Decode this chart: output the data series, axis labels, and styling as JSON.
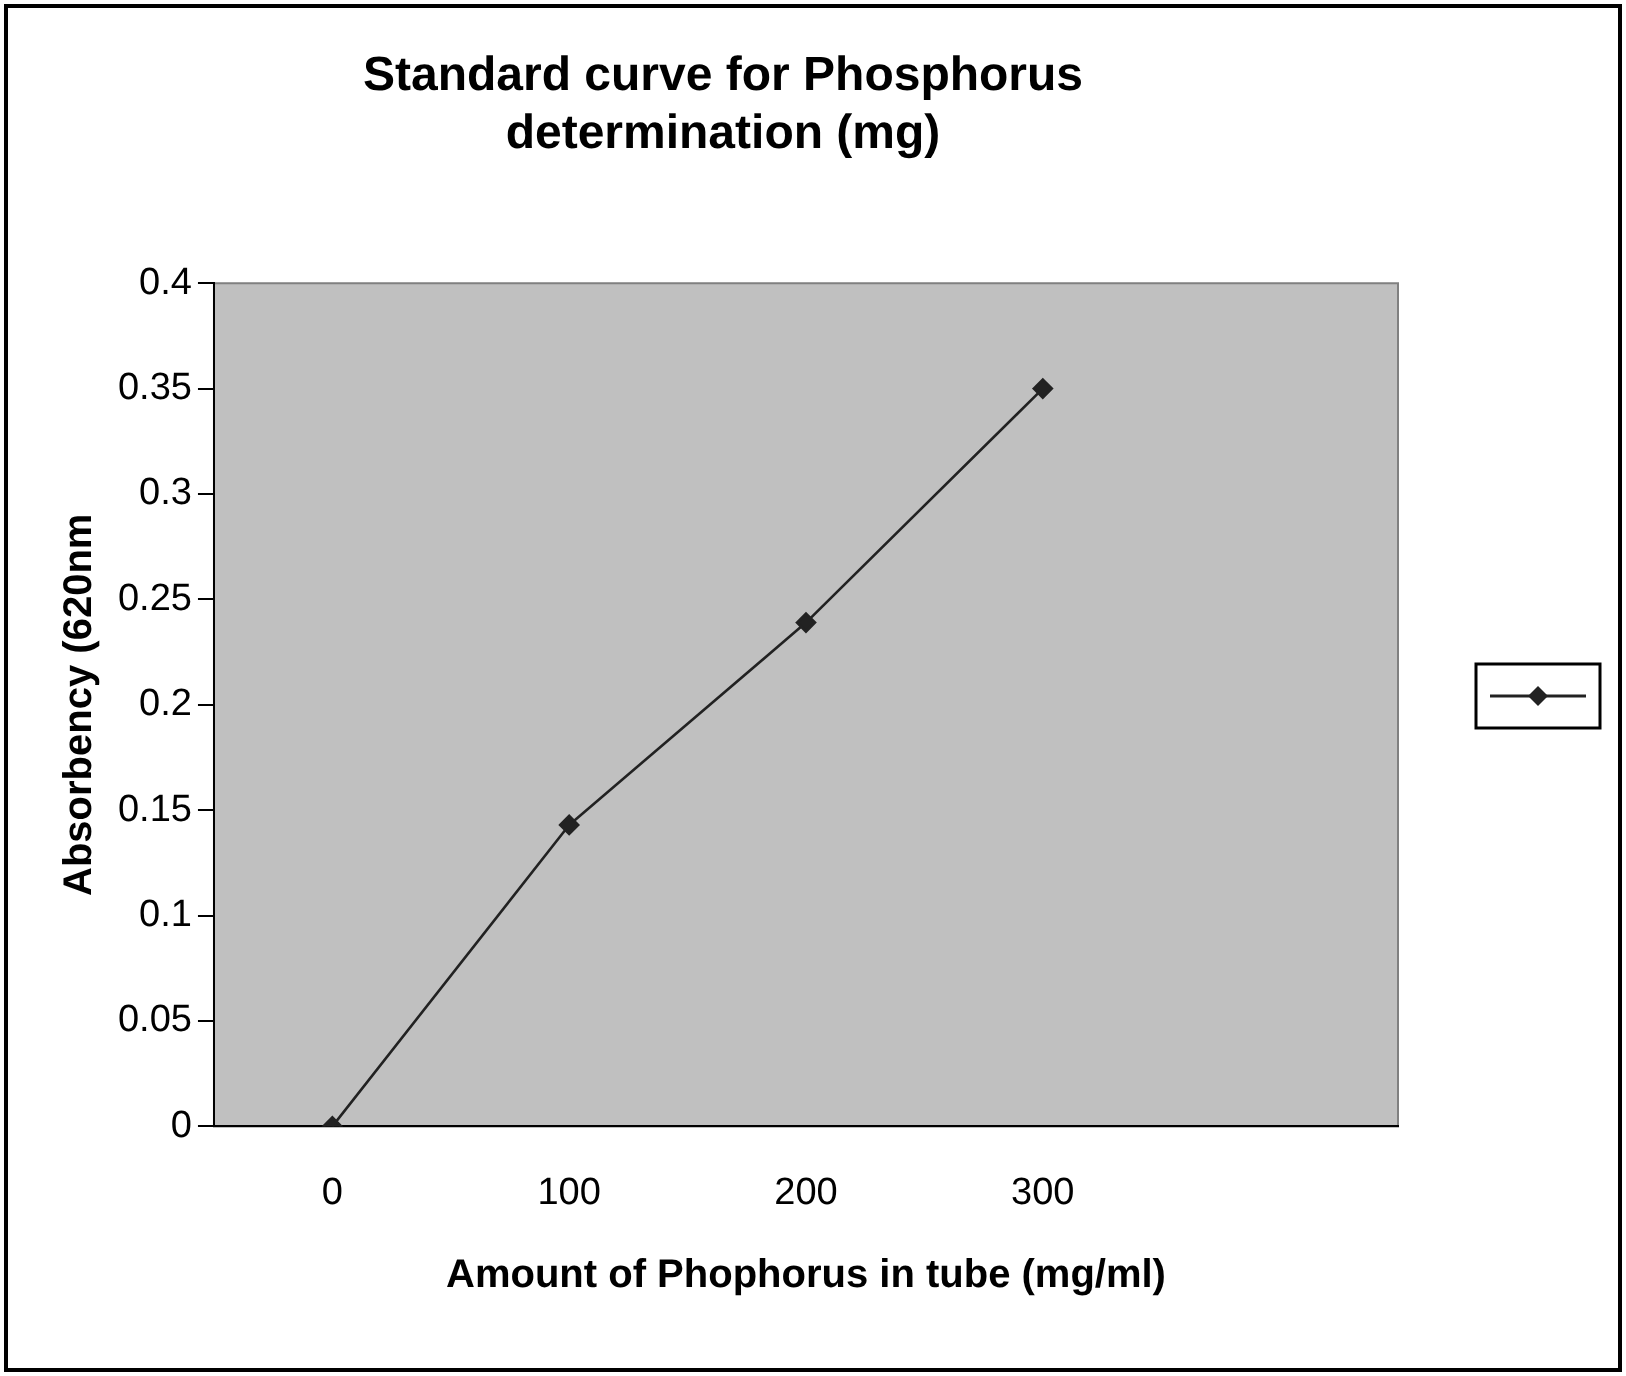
{
  "chart_data": {
    "type": "line",
    "title": "Standard curve for Phosphorus determination (mg)",
    "xlabel": "Amount of Phophorus in tube (mg/ml)",
    "ylabel": "Absorbency (620nm",
    "categories": [
      "0",
      "100",
      "200",
      "300",
      null
    ],
    "series": [
      {
        "color": "#222222",
        "values": [
          0,
          0.143,
          0.239,
          0.35,
          null
        ]
      }
    ],
    "ylim": [
      0,
      0.4
    ],
    "yticks": [
      0,
      0.05,
      0.1,
      0.15,
      0.2,
      0.25,
      0.3,
      0.35,
      0.4
    ],
    "grid": false,
    "marker": "diamond",
    "line_style": "solid"
  }
}
